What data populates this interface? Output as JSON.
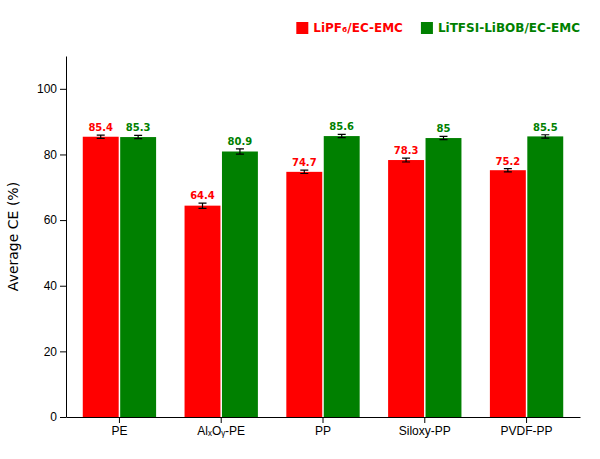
{
  "chart_data": {
    "type": "bar",
    "categories": [
      "PE",
      "AlₓOᵧ-PE",
      "PP",
      "Siloxy-PP",
      "PVDF-PP"
    ],
    "series": [
      {
        "name": "LiPF₆/EC-EMC",
        "color": "#FF0000",
        "values": [
          85.4,
          64.4,
          74.7,
          78.3,
          75.2
        ],
        "errors": [
          0.5,
          0.8,
          0.5,
          0.6,
          0.5
        ]
      },
      {
        "name": "LiTFSI-LiBOB/EC-EMC",
        "color": "#008000",
        "values": [
          85.3,
          80.9,
          85.6,
          85.0,
          85.5
        ],
        "errors": [
          0.5,
          0.8,
          0.5,
          0.5,
          0.5
        ]
      }
    ],
    "ylabel": "Average CE (%)",
    "ylim": [
      0,
      110
    ],
    "yticks": [
      0,
      20,
      40,
      60,
      80,
      100
    ],
    "data_labels": true,
    "legend": "upper right",
    "grid": false
  }
}
